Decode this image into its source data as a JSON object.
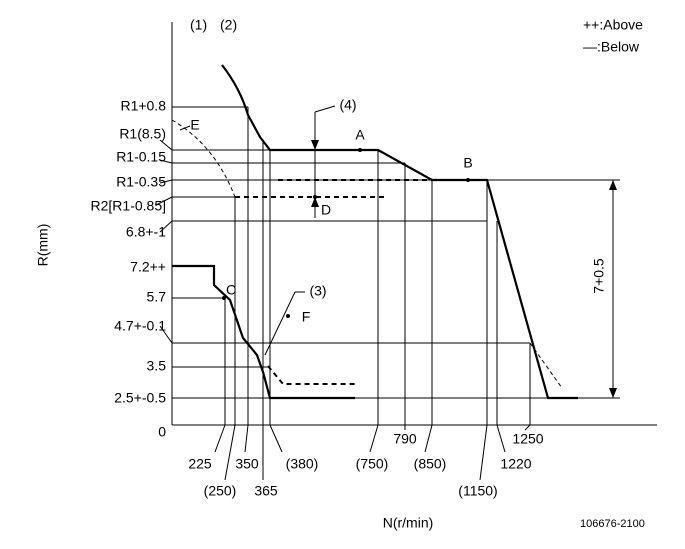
{
  "header": {
    "labels": [
      "(1)",
      "(2)"
    ],
    "legend": [
      "++:Above",
      "—:Below"
    ]
  },
  "y_axis": {
    "title": "R(mm)",
    "labels": [
      "R1+0.8",
      "R1(8.5)",
      "R1-0.15",
      "R1-0.35",
      "R2[R1-0.85]",
      "6.8+-1",
      "7.2++",
      "5.7",
      "4.7+-0.1",
      "3.5",
      "2.5+-0.5",
      "0"
    ]
  },
  "x_axis": {
    "title": "N(r/min)",
    "labels": [
      "225",
      "(250)",
      "350",
      "365",
      "(380)",
      "(750)",
      "790",
      "(850)",
      "(1150)",
      "1220",
      "1250"
    ]
  },
  "annotations": [
    "(4)",
    "(3)",
    "A",
    "B",
    "C",
    "D",
    "E",
    "F"
  ],
  "dimension": "7+0.5",
  "code": "106676-2100"
}
